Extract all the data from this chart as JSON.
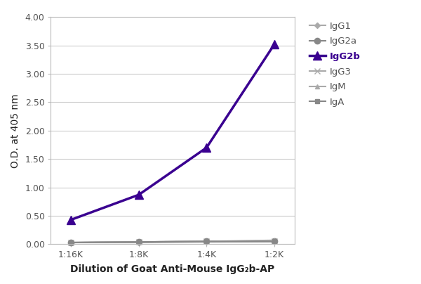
{
  "x_labels": [
    "1:16K",
    "1:8K",
    "1:4K",
    "1:2K"
  ],
  "x_values": [
    0,
    1,
    2,
    3
  ],
  "series": [
    {
      "name": "IgG1",
      "values": [
        0.03,
        0.03,
        0.04,
        0.05
      ],
      "color": "#aaaaaa",
      "marker": "D",
      "linewidth": 1.5,
      "markersize": 4.5,
      "bold": false
    },
    {
      "name": "IgG2a",
      "values": [
        0.03,
        0.04,
        0.05,
        0.05
      ],
      "color": "#888888",
      "marker": "o",
      "linewidth": 1.5,
      "markersize": 6,
      "bold": false
    },
    {
      "name": "IgG2b",
      "values": [
        0.43,
        0.87,
        1.7,
        3.52
      ],
      "color": "#3a0090",
      "marker": "^",
      "linewidth": 2.5,
      "markersize": 8,
      "bold": true
    },
    {
      "name": "IgG3",
      "values": [
        0.03,
        0.04,
        0.05,
        0.06
      ],
      "color": "#aaaaaa",
      "marker": "x",
      "linewidth": 1.5,
      "markersize": 6,
      "bold": false
    },
    {
      "name": "IgM",
      "values": [
        0.03,
        0.04,
        0.05,
        0.07
      ],
      "color": "#aaaaaa",
      "marker": "^",
      "linewidth": 1.5,
      "markersize": 5,
      "bold": false
    },
    {
      "name": "IgA",
      "values": [
        0.03,
        0.04,
        0.05,
        0.05
      ],
      "color": "#888888",
      "marker": "s",
      "linewidth": 1.5,
      "markersize": 5,
      "bold": false
    }
  ],
  "ylabel": "O.D. at 405 nm",
  "xlabel_parts": [
    "Dilution of Goat Anti-Mouse IgG",
    "2b",
    "-AP"
  ],
  "ylim": [
    0.0,
    4.0
  ],
  "yticks": [
    0.0,
    0.5,
    1.0,
    1.5,
    2.0,
    2.5,
    3.0,
    3.5,
    4.0
  ],
  "ytick_labels": [
    "0.00",
    "0.50",
    "1.00",
    "1.50",
    "2.00",
    "2.50",
    "3.00",
    "3.50",
    "4.00"
  ],
  "background_color": "#ffffff",
  "grid_color": "#cccccc",
  "tick_label_color": "#555555",
  "axis_label_color": "#222222"
}
